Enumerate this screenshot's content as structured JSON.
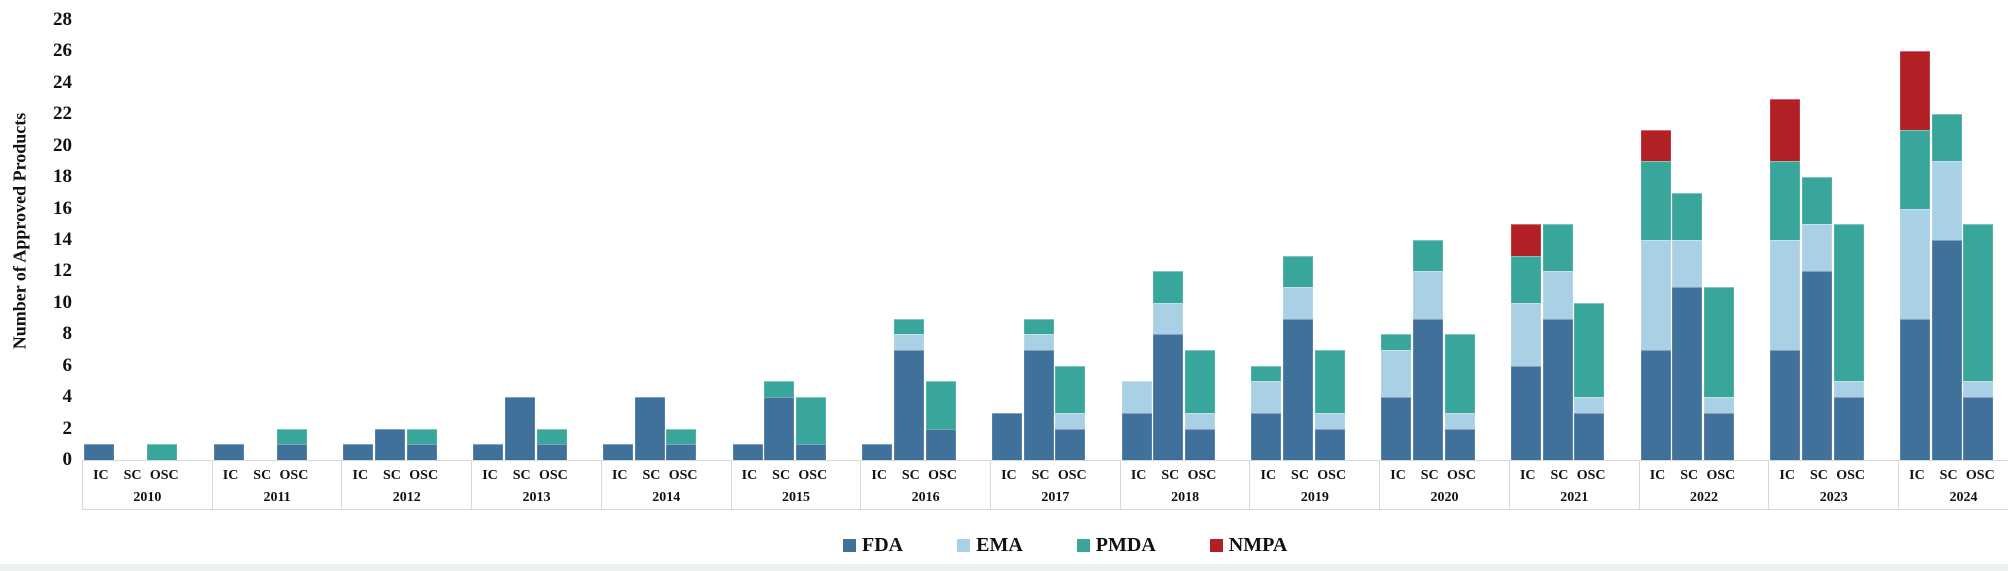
{
  "chart_data": {
    "type": "bar",
    "stacked": true,
    "title": "",
    "xlabel": "",
    "ylabel": "Number of Approved Products",
    "ylim": [
      0,
      28
    ],
    "ytick_step": 2,
    "grid": false,
    "legend_position": "bottom",
    "bar_categories": [
      "IC",
      "SC",
      "OSC"
    ],
    "series": [
      {
        "name": "FDA",
        "color": "#3f719b"
      },
      {
        "name": "EMA",
        "color": "#a9d0e4"
      },
      {
        "name": "PMDA",
        "color": "#38a69a"
      },
      {
        "name": "NMPA",
        "color": "#b22025"
      }
    ],
    "years": [
      {
        "label": "2010",
        "values": {
          "IC": [
            1,
            0,
            0,
            0
          ],
          "SC": [
            0,
            0,
            0,
            0
          ],
          "OSC": [
            0,
            0,
            1,
            0
          ]
        }
      },
      {
        "label": "2011",
        "values": {
          "IC": [
            1,
            0,
            0,
            0
          ],
          "SC": [
            0,
            0,
            0,
            0
          ],
          "OSC": [
            1,
            0,
            1,
            0
          ]
        }
      },
      {
        "label": "2012",
        "values": {
          "IC": [
            1,
            0,
            0,
            0
          ],
          "SC": [
            2,
            0,
            0,
            0
          ],
          "OSC": [
            1,
            0,
            1,
            0
          ]
        }
      },
      {
        "label": "2013",
        "values": {
          "IC": [
            1,
            0,
            0,
            0
          ],
          "SC": [
            4,
            0,
            0,
            0
          ],
          "OSC": [
            1,
            0,
            1,
            0
          ]
        }
      },
      {
        "label": "2014",
        "values": {
          "IC": [
            1,
            0,
            0,
            0
          ],
          "SC": [
            4,
            0,
            0,
            0
          ],
          "OSC": [
            1,
            0,
            1,
            0
          ]
        }
      },
      {
        "label": "2015",
        "values": {
          "IC": [
            1,
            0,
            0,
            0
          ],
          "SC": [
            4,
            0,
            1,
            0
          ],
          "OSC": [
            1,
            0,
            3,
            0
          ]
        }
      },
      {
        "label": "2016",
        "values": {
          "IC": [
            1,
            0,
            0,
            0
          ],
          "SC": [
            7,
            1,
            1,
            0
          ],
          "OSC": [
            2,
            0,
            3,
            0
          ]
        }
      },
      {
        "label": "2017",
        "values": {
          "IC": [
            3,
            0,
            0,
            0
          ],
          "SC": [
            7,
            1,
            1,
            0
          ],
          "OSC": [
            2,
            1,
            3,
            0
          ]
        }
      },
      {
        "label": "2018",
        "values": {
          "IC": [
            3,
            2,
            0,
            0
          ],
          "SC": [
            8,
            2,
            2,
            0
          ],
          "OSC": [
            2,
            1,
            4,
            0
          ]
        }
      },
      {
        "label": "2019",
        "values": {
          "IC": [
            3,
            2,
            1,
            0
          ],
          "SC": [
            9,
            2,
            2,
            0
          ],
          "OSC": [
            2,
            1,
            4,
            0
          ]
        }
      },
      {
        "label": "2020",
        "values": {
          "IC": [
            4,
            3,
            1,
            0
          ],
          "SC": [
            9,
            3,
            2,
            0
          ],
          "OSC": [
            2,
            1,
            5,
            0
          ]
        }
      },
      {
        "label": "2021",
        "values": {
          "IC": [
            6,
            4,
            3,
            2
          ],
          "SC": [
            9,
            3,
            3,
            0
          ],
          "OSC": [
            3,
            1,
            6,
            0
          ]
        }
      },
      {
        "label": "2022",
        "values": {
          "IC": [
            7,
            7,
            5,
            2
          ],
          "SC": [
            11,
            3,
            3,
            0
          ],
          "OSC": [
            3,
            1,
            7,
            0
          ]
        }
      },
      {
        "label": "2023",
        "values": {
          "IC": [
            7,
            7,
            5,
            4
          ],
          "SC": [
            12,
            3,
            3,
            0
          ],
          "OSC": [
            4,
            1,
            10,
            0
          ]
        }
      },
      {
        "label": "2024",
        "values": {
          "IC": [
            9,
            7,
            5,
            5
          ],
          "SC": [
            14,
            5,
            3,
            0
          ],
          "OSC": [
            4,
            1,
            10,
            0
          ]
        }
      }
    ]
  },
  "colors": {
    "cell_border": "#d9d9d9",
    "text": "#111111",
    "background": "#ffffff",
    "bottom_strip": "#eef1f1"
  }
}
